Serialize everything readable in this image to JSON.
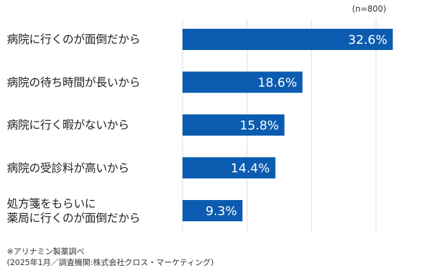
{
  "chart_data": {
    "type": "bar",
    "orientation": "horizontal",
    "categories": [
      "病院に行くのが面倒だから",
      "病院の待ち時間が長いから",
      "病院に行く暇がないから",
      "病院の受診料が高いから",
      "処方箋をもらいに\n薬局に行くのが面倒だから"
    ],
    "values": [
      32.6,
      18.6,
      15.8,
      14.4,
      9.3
    ],
    "data_labels": [
      "32.6%",
      "18.6%",
      "15.8%",
      "14.4%",
      "9.3%"
    ],
    "sample_size": "(n=800)",
    "xlim": [
      0,
      35
    ],
    "gridlines": [
      0,
      10,
      20,
      30
    ],
    "grid": true,
    "bar_color": "#0b5cb0",
    "gridline_color": "#d9d9d9"
  },
  "notes": [
    "※アリナミン製薬調べ",
    "(2025年1月／調査機関:株式会社クロス・マーケティング)"
  ]
}
